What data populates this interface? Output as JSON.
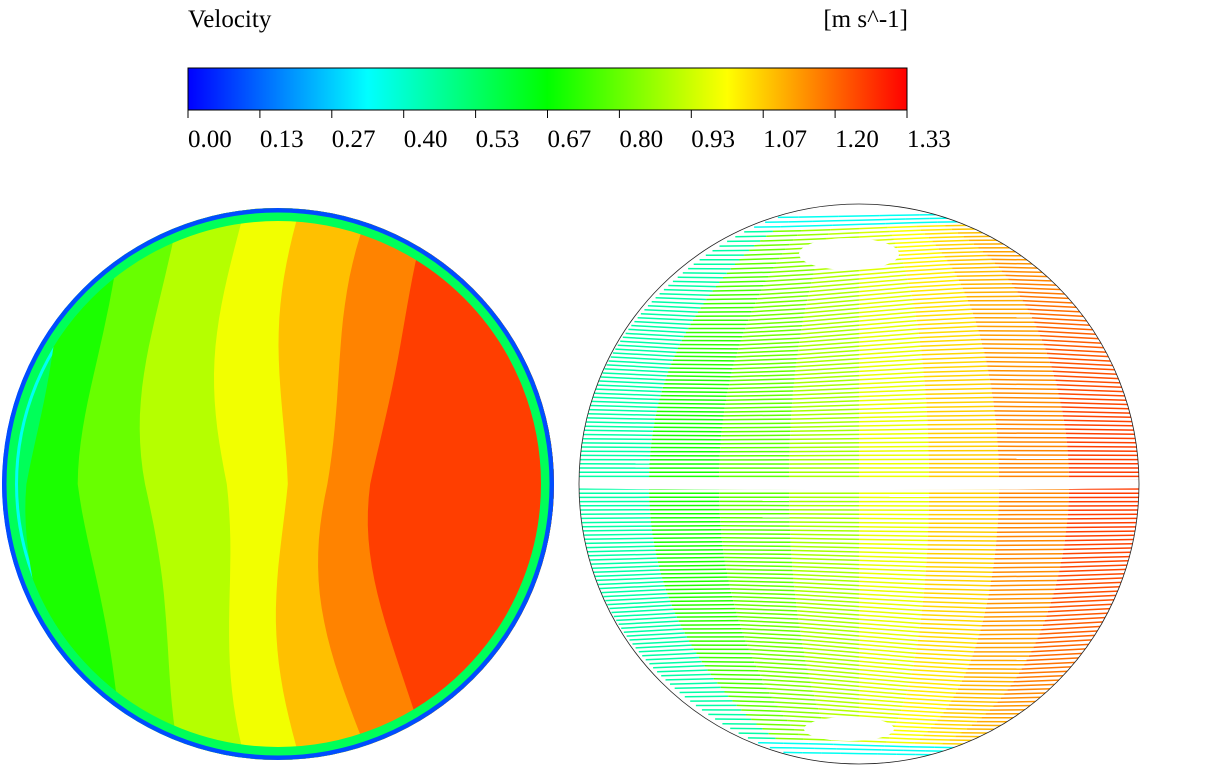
{
  "chart_data": {
    "type": "heatmap",
    "title": "Velocity",
    "units": "[m s^-1]",
    "colormap": {
      "name": "rainbow",
      "min": 0.0,
      "max": 1.33,
      "stops": [
        "#0000ff",
        "#0080ff",
        "#00ffff",
        "#00ff80",
        "#00ff00",
        "#80ff00",
        "#ffff00",
        "#ff8000",
        "#ff0000"
      ]
    },
    "ticks": [
      "0.00",
      "0.13",
      "0.27",
      "0.40",
      "0.53",
      "0.67",
      "0.80",
      "0.93",
      "1.07",
      "1.20",
      "1.33"
    ],
    "contour_plot": {
      "description": "velocity contour on circular cross-section",
      "bands": [
        {
          "value": 0.05
        },
        {
          "value": 0.15
        },
        {
          "value": 0.35
        },
        {
          "value": 0.55
        },
        {
          "value": 0.7
        },
        {
          "value": 0.8
        },
        {
          "value": 0.9
        },
        {
          "value": 0.98
        },
        {
          "value": 1.08
        },
        {
          "value": 1.16
        },
        {
          "value": 1.25
        }
      ]
    },
    "streamline_plot": {
      "description": "velocity-colored streamlines on circular cross-section",
      "range": [
        0.0,
        1.33
      ]
    }
  }
}
